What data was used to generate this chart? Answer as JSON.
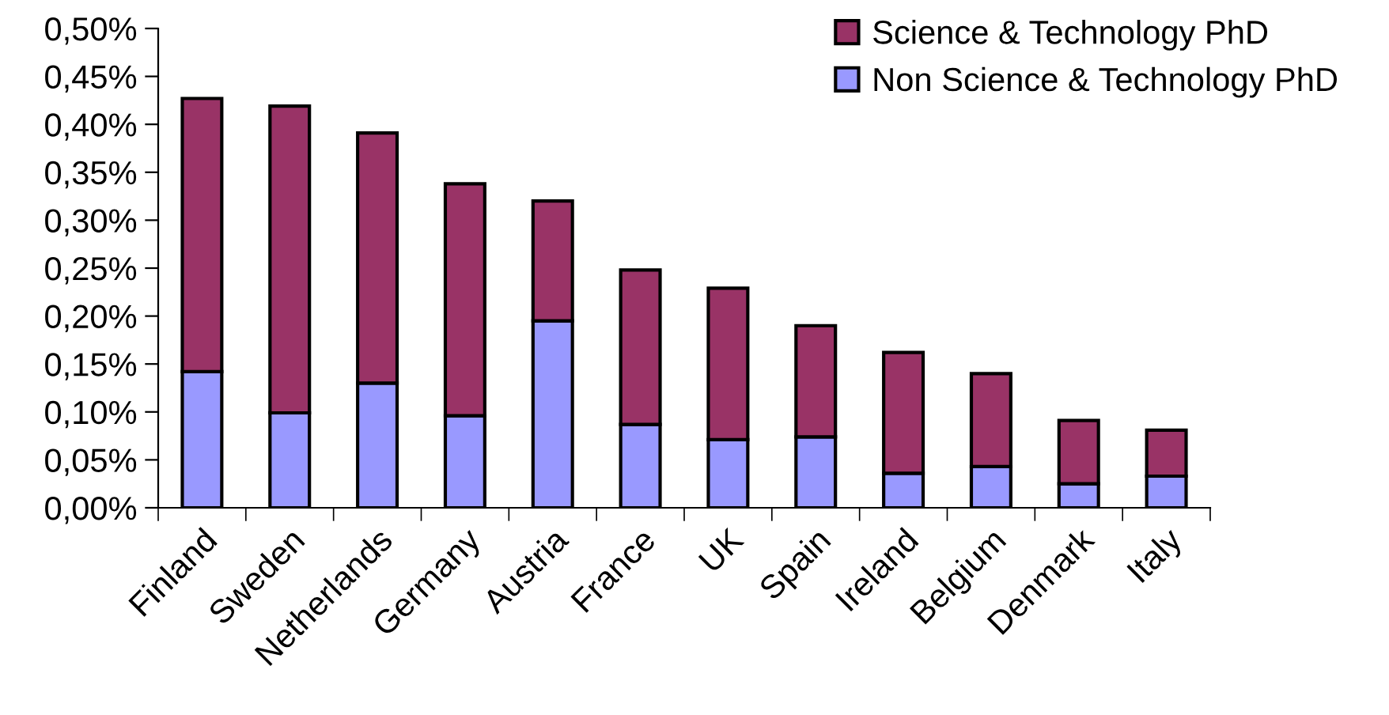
{
  "chart_data": {
    "type": "bar",
    "stacked": true,
    "categories": [
      "Finland",
      "Sweden",
      "Netherlands",
      "Germany",
      "Austria",
      "France",
      "UK",
      "Spain",
      "Ireland",
      "Belgium",
      "Denmark",
      "Italy"
    ],
    "series": [
      {
        "name": "Non Science & Technology PhD",
        "color": "#9999ff",
        "values": [
          0.142,
          0.099,
          0.13,
          0.096,
          0.195,
          0.087,
          0.071,
          0.074,
          0.036,
          0.043,
          0.025,
          0.033
        ]
      },
      {
        "name": "Science & Technology PhD",
        "color": "#993366",
        "values": [
          0.285,
          0.32,
          0.261,
          0.242,
          0.125,
          0.161,
          0.158,
          0.116,
          0.126,
          0.097,
          0.066,
          0.048
        ]
      }
    ],
    "ylim": [
      0,
      0.5
    ],
    "yticks": [
      {
        "value": 0,
        "label": "0,00%"
      },
      {
        "value": 0.05,
        "label": "0,05%"
      },
      {
        "value": 0.1,
        "label": "0,10%"
      },
      {
        "value": 0.15,
        "label": "0,15%"
      },
      {
        "value": 0.2,
        "label": "0,20%"
      },
      {
        "value": 0.25,
        "label": "0,25%"
      },
      {
        "value": 0.3,
        "label": "0,30%"
      },
      {
        "value": 0.35,
        "label": "0,35%"
      },
      {
        "value": 0.4,
        "label": "0,40%"
      },
      {
        "value": 0.45,
        "label": "0,45%"
      },
      {
        "value": 0.5,
        "label": "0,50%"
      }
    ],
    "grid": false,
    "legend": "top right"
  }
}
